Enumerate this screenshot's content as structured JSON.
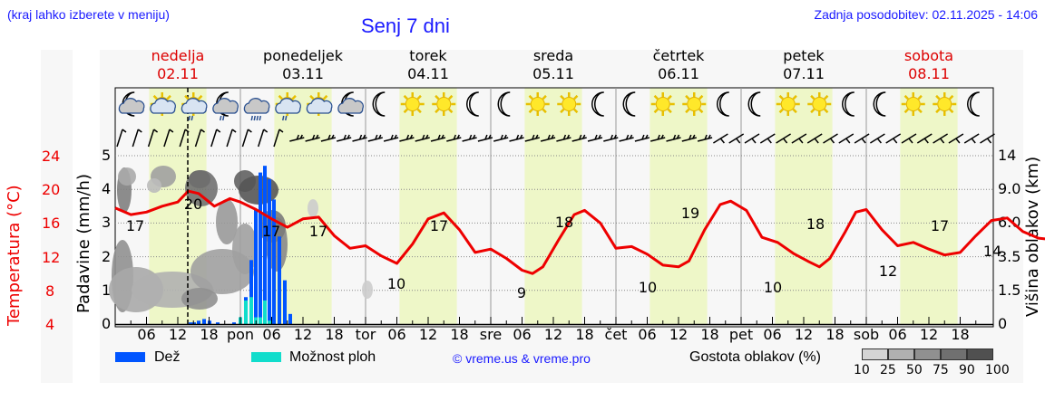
{
  "header": {
    "hint": "(kraj lahko izberete v meniju)",
    "title": "Senj 7 dni",
    "updated": "Zadnja posodobitev: 02.11.2025 - 14:06"
  },
  "days": [
    {
      "name": "nedelja",
      "date": "02.11",
      "weekend": true
    },
    {
      "name": "ponedeljek",
      "date": "03.11",
      "weekend": false
    },
    {
      "name": "torek",
      "date": "04.11",
      "weekend": false
    },
    {
      "name": "sreda",
      "date": "05.11",
      "weekend": false
    },
    {
      "name": "četrtek",
      "date": "06.11",
      "weekend": false
    },
    {
      "name": "petek",
      "date": "07.11",
      "weekend": false
    },
    {
      "name": "sobota",
      "date": "08.11",
      "weekend": true
    }
  ],
  "axes": {
    "temp_title": "Temperatura (°C)",
    "temp_ticks": [
      "24",
      "20",
      "16",
      "12",
      "8",
      "4"
    ],
    "prec_title": "Padavine (mm/h)",
    "prec_ticks": [
      "5",
      "4",
      "3",
      "2",
      "1",
      "0"
    ],
    "cloud_title": "Višina oblakov (km)",
    "cloud_ticks": [
      "14",
      "9.0",
      "6.0",
      "3.5",
      "1.5",
      "0"
    ],
    "x_ticks": [
      "06",
      "12",
      "18",
      "pon",
      "06",
      "12",
      "18",
      "tor",
      "06",
      "12",
      "18",
      "sre",
      "06",
      "12",
      "18",
      "čet",
      "06",
      "12",
      "18",
      "pet",
      "06",
      "12",
      "18",
      "sob",
      "06",
      "12",
      "18"
    ]
  },
  "icons": [
    "moon-cloud-icon",
    "sun-cloud-icon",
    "sun-cloud-rain-icon",
    "moon-cloud-rain-icon",
    "cloud-heavy-rain-icon",
    "sun-cloud-rain-icon",
    "sun-cloud-icon",
    "moon-cloud-icon",
    "moon-icon",
    "sun-icon",
    "sun-icon",
    "moon-icon",
    "moon-icon",
    "sun-icon",
    "sun-icon",
    "moon-icon",
    "moon-icon",
    "sun-icon",
    "sun-icon",
    "moon-icon",
    "moon-icon",
    "sun-icon",
    "sun-icon",
    "moon-icon",
    "moon-icon",
    "sun-icon",
    "sun-icon",
    "moon-icon"
  ],
  "legend": {
    "rain_label": "Dež",
    "rain_color": "#0055ff",
    "shower_label": "Možnost ploh",
    "shower_color": "#11ddcc",
    "credit": "© vreme.us & vreme.pro",
    "cloud_density_label": "Gostota oblakov (%)",
    "cloud_density_ticks": [
      "10",
      "25",
      "50",
      "75",
      "90",
      "100"
    ],
    "cloud_density_colors": [
      "#d4d4d4",
      "#b0b0b0",
      "#909090",
      "#707070",
      "#505050"
    ]
  },
  "colors": {
    "temperature_line": "#ee0000",
    "daylight_band": "#eef7c8",
    "weekend_text": "#dd0000",
    "link_blue": "#1a1aff"
  },
  "chart_data": {
    "type": "line",
    "title": "Senj 7 dni",
    "xlabel": "",
    "ylabel": "Temperatura (°C) / Padavine (mm/h)",
    "y2label": "Višina oblakov (km)",
    "ylim_temp": [
      4,
      24
    ],
    "ylim_prec": [
      0,
      5
    ],
    "now_marker": "02.11 14:06",
    "series": [
      {
        "name": "Temperatura",
        "unit": "°C",
        "annotations": [
          {
            "time": "02.11 03",
            "value": 17
          },
          {
            "time": "02.11 14",
            "value": 20
          },
          {
            "time": "03.11 07",
            "value": 17
          },
          {
            "time": "03.11 15",
            "value": 17
          },
          {
            "time": "04.11 06",
            "value": 10
          },
          {
            "time": "04.11 14",
            "value": 17
          },
          {
            "time": "05.11 06",
            "value": 9
          },
          {
            "time": "05.11 14",
            "value": 18
          },
          {
            "time": "06.11 06",
            "value": 10
          },
          {
            "time": "06.11 15",
            "value": 19
          },
          {
            "time": "07.11 06",
            "value": 10
          },
          {
            "time": "07.11 14",
            "value": 18
          },
          {
            "time": "08.11 03",
            "value": 12
          },
          {
            "time": "08.11 14",
            "value": 17
          },
          {
            "time": "08.11 23",
            "value": 14
          }
        ],
        "points": [
          [
            0,
            17.8
          ],
          [
            3,
            17.0
          ],
          [
            6,
            17.3
          ],
          [
            9,
            18.0
          ],
          [
            12,
            18.5
          ],
          [
            14,
            19.8
          ],
          [
            16,
            19.5
          ],
          [
            19,
            18.0
          ],
          [
            22,
            18.9
          ],
          [
            24,
            18.5
          ],
          [
            27,
            17.6
          ],
          [
            30,
            16.5
          ],
          [
            33,
            15.5
          ],
          [
            36,
            16.5
          ],
          [
            39,
            16.7
          ],
          [
            42,
            14.5
          ],
          [
            45,
            13.0
          ],
          [
            48,
            13.3
          ],
          [
            51,
            12.1
          ],
          [
            54,
            11.2
          ],
          [
            57,
            13.5
          ],
          [
            60,
            16.5
          ],
          [
            63,
            17.2
          ],
          [
            66,
            15.2
          ],
          [
            69,
            12.5
          ],
          [
            72,
            12.9
          ],
          [
            75,
            11.8
          ],
          [
            78,
            10.4
          ],
          [
            80,
            10.0
          ],
          [
            82,
            10.8
          ],
          [
            85,
            14.0
          ],
          [
            88,
            17.0
          ],
          [
            90,
            17.5
          ],
          [
            93,
            16.0
          ],
          [
            96,
            13.0
          ],
          [
            99,
            13.2
          ],
          [
            102,
            12.3
          ],
          [
            105,
            11.0
          ],
          [
            108,
            10.8
          ],
          [
            110,
            11.5
          ],
          [
            113,
            15.2
          ],
          [
            116,
            18.2
          ],
          [
            118,
            18.6
          ],
          [
            121,
            17.5
          ],
          [
            124,
            14.3
          ],
          [
            127,
            13.7
          ],
          [
            130,
            12.4
          ],
          [
            133,
            11.4
          ],
          [
            135,
            10.8
          ],
          [
            137,
            11.8
          ],
          [
            140,
            15.0
          ],
          [
            142,
            17.3
          ],
          [
            144,
            17.6
          ],
          [
            147,
            15.2
          ],
          [
            150,
            13.3
          ],
          [
            153,
            13.7
          ],
          [
            156,
            12.9
          ],
          [
            159,
            12.2
          ],
          [
            162,
            12.5
          ],
          [
            165,
            14.5
          ],
          [
            168,
            16.3
          ],
          [
            171,
            16.6
          ],
          [
            174,
            15.0
          ],
          [
            177,
            14.2
          ],
          [
            180,
            14.0
          ],
          [
            182,
            13.6
          ]
        ]
      },
      {
        "name": "Dež",
        "unit": "mm/h",
        "points": [
          [
            "02.11 14",
            0.05
          ],
          [
            "02.11 15",
            0.05
          ],
          [
            "02.11 16",
            0.1
          ],
          [
            "02.11 17",
            0.15
          ],
          [
            "02.11 18",
            0.1
          ],
          [
            "02.11 20",
            0.05
          ],
          [
            "02.11 23",
            0.05
          ],
          [
            "03.11 00",
            0.2
          ],
          [
            "03.11 01",
            0.8
          ],
          [
            "03.11 02",
            1.9
          ],
          [
            "03.11 03",
            3.4
          ],
          [
            "03.11 04",
            4.5
          ],
          [
            "03.11 05",
            4.7
          ],
          [
            "03.11 06",
            4.3
          ],
          [
            "03.11 07",
            3.7
          ],
          [
            "03.11 08",
            2.6
          ],
          [
            "03.11 09",
            1.3
          ],
          [
            "03.11 10",
            0.3
          ]
        ]
      },
      {
        "name": "Možnost ploh",
        "unit": "mm/h",
        "points": [
          [
            "03.11 00",
            0.2
          ],
          [
            "03.11 01",
            0.7
          ],
          [
            "03.11 02",
            0.8
          ],
          [
            "03.11 03",
            0.2
          ],
          [
            "03.11 04",
            0.2
          ],
          [
            "03.11 05",
            0.7
          ],
          [
            "03.11 06",
            0.1
          ]
        ]
      }
    ]
  }
}
